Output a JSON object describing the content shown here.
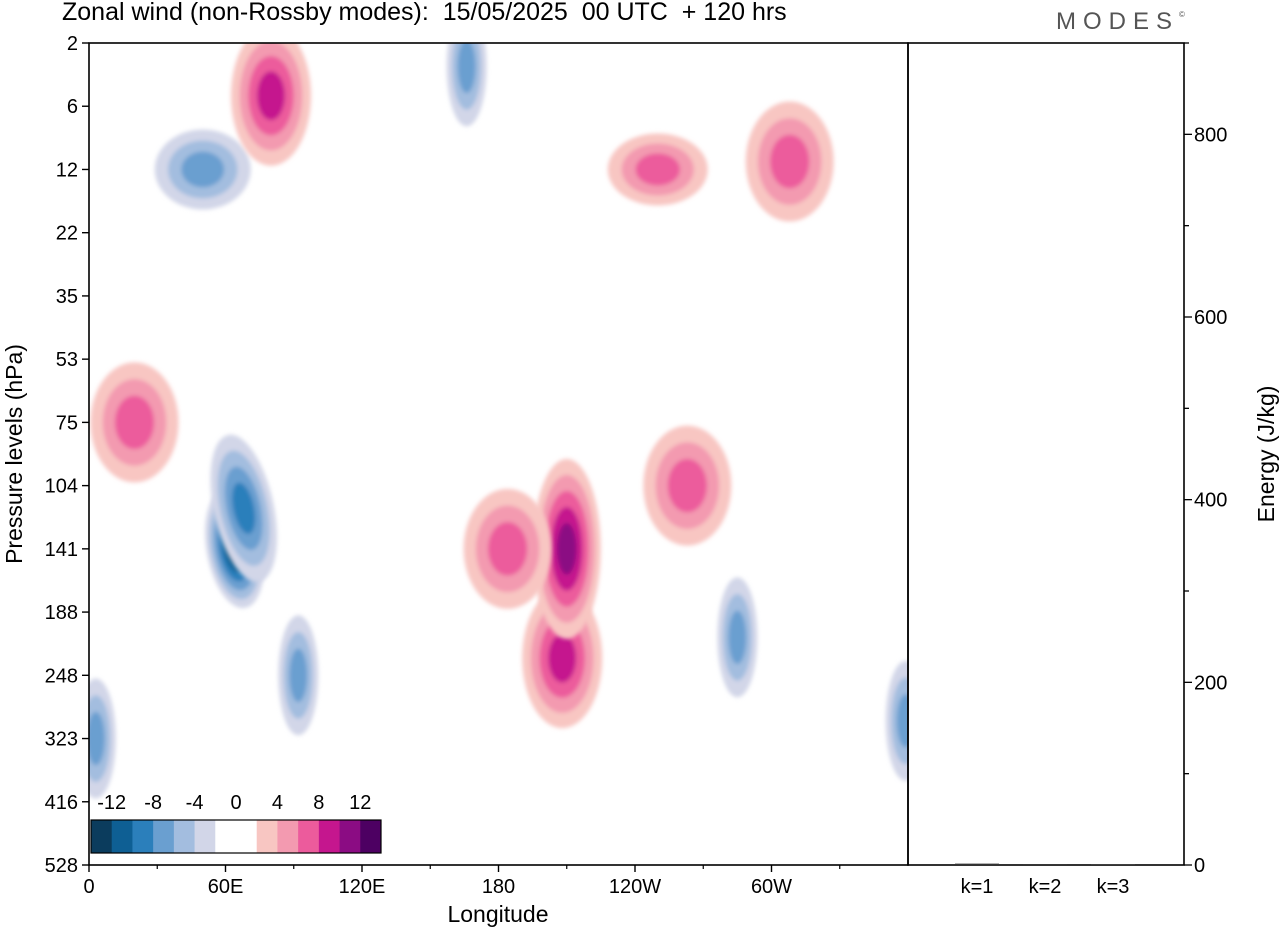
{
  "title": "Zonal wind (non-Rossby modes):  15/05/2025  00 UTC  + 120 hrs",
  "logo": "MODES",
  "logo_mark": "©",
  "colors": {
    "neg": [
      "#0b3c5d",
      "#0e5f94",
      "#2b7fbb",
      "#6a9fd0",
      "#a3bddf",
      "#d2d6e8"
    ],
    "pos": [
      "#f8c6c2",
      "#f39ab0",
      "#ec5b9c",
      "#c5168e",
      "#8b0c83",
      "#4d0062"
    ]
  },
  "chart_data": [
    {
      "type": "heatmap",
      "title": "Zonal wind (non-Rossby modes):  15/05/2025  00 UTC  + 120 hrs",
      "xlabel": "Longitude",
      "ylabel": "Pressure levels (hPa)",
      "x_ticks": [
        "0",
        "60E",
        "120E",
        "180",
        "120W",
        "60W"
      ],
      "x_tick_values": [
        0,
        60,
        120,
        180,
        240,
        300
      ],
      "xlim": [
        0,
        360
      ],
      "y_ticks": [
        "2",
        "6",
        "12",
        "22",
        "35",
        "53",
        "75",
        "104",
        "141",
        "188",
        "248",
        "323",
        "416",
        "528"
      ],
      "y_scale": "level-index",
      "colorbar": {
        "labels": [
          "-12",
          "-8",
          "-4",
          "0",
          "4",
          "8",
          "12"
        ],
        "levels": [
          -12,
          -10,
          -8,
          -6,
          -4,
          -2,
          2,
          4,
          6,
          8,
          10,
          12
        ]
      },
      "features": [
        {
          "lon": 64,
          "p": 141,
          "value": -12
        },
        {
          "lon": 68,
          "p": 116,
          "value": -8
        },
        {
          "lon": 92,
          "p": 248,
          "value": -6
        },
        {
          "lon": 3,
          "p": 323,
          "value": -6
        },
        {
          "lon": 50,
          "p": 12,
          "value": -5
        },
        {
          "lon": 166,
          "p": 3,
          "value": -6
        },
        {
          "lon": 285,
          "p": 210,
          "value": -6
        },
        {
          "lon": 359,
          "p": 300,
          "value": -6
        },
        {
          "lon": 208,
          "p": 230,
          "value": 8
        },
        {
          "lon": 210,
          "p": 141,
          "value": 10
        },
        {
          "lon": 184,
          "p": 141,
          "value": 6
        },
        {
          "lon": 80,
          "p": 5,
          "value": 8
        },
        {
          "lon": 20,
          "p": 75,
          "value": 6
        },
        {
          "lon": 263,
          "p": 104,
          "value": 6
        },
        {
          "lon": 308,
          "p": 11,
          "value": 6
        },
        {
          "lon": 250,
          "p": 12,
          "value": 5
        }
      ]
    },
    {
      "type": "bar",
      "categories": [
        "k=1",
        "k=2",
        "k=3"
      ],
      "values": [
        1.5,
        1.0,
        0.8
      ],
      "ylabel": "Energy (J/kg)",
      "ylim": [
        0,
        900
      ],
      "y_ticks": [
        "0",
        "200",
        "400",
        "600",
        "800"
      ],
      "y_tick_values": [
        0,
        200,
        400,
        600,
        800
      ]
    }
  ]
}
